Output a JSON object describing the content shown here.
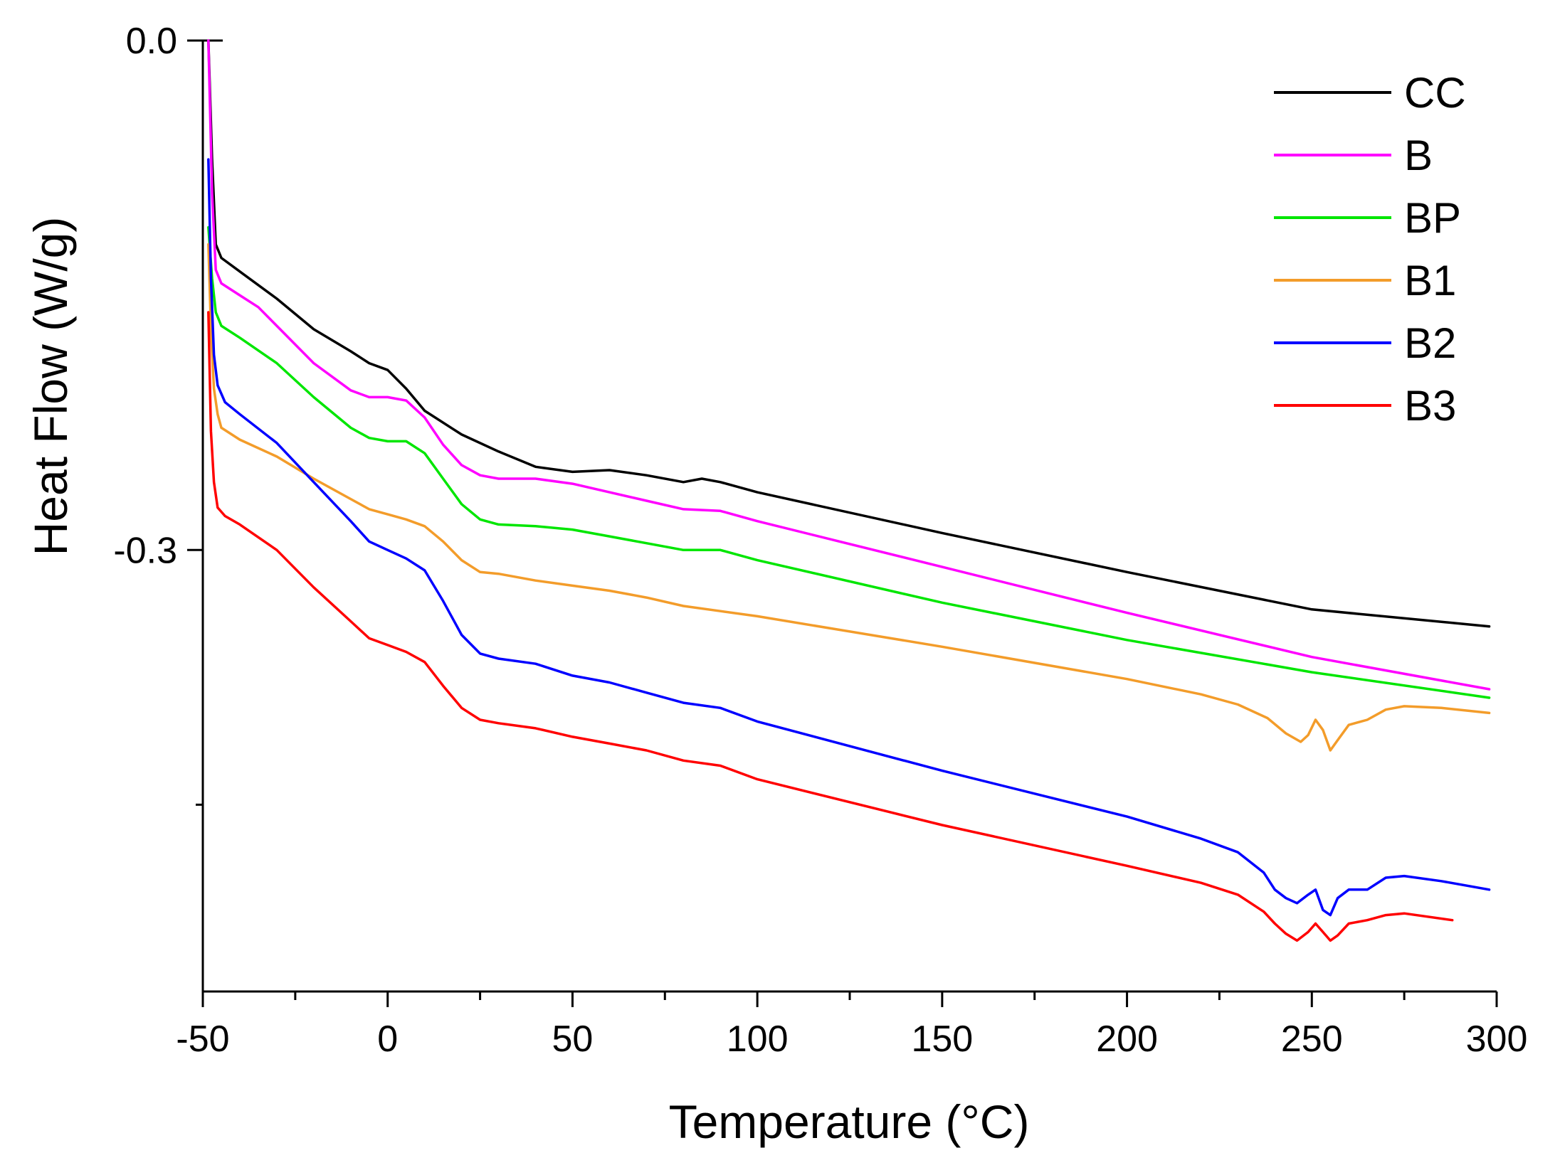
{
  "chart_data": {
    "type": "line",
    "title": "",
    "xlabel": "Temperature (°C)",
    "ylabel": "Heat Flow (W/g)",
    "xlim": [
      -50,
      300
    ],
    "ylim": [
      -0.56,
      0.0
    ],
    "x_ticks": [
      -50,
      0,
      50,
      100,
      150,
      200,
      250,
      300
    ],
    "x_tick_labels": [
      "-50",
      "0",
      "50",
      "100",
      "150",
      "200",
      "250",
      "300"
    ],
    "x_minor_ticks": [
      -25,
      25,
      75,
      125,
      175,
      225,
      275
    ],
    "y_ticks": [
      0.0,
      -0.3,
      -0.45
    ],
    "y_tick_labels": [
      "0.0",
      "-0.3",
      ""
    ],
    "grid": false,
    "legend_position": "top-right",
    "series": [
      {
        "name": "CC",
        "color": "#000000",
        "points": [
          [
            -48.5,
            0.0
          ],
          [
            -47.5,
            -0.07
          ],
          [
            -46.5,
            -0.12
          ],
          [
            -45,
            -0.128
          ],
          [
            -40,
            -0.136
          ],
          [
            -30,
            -0.152
          ],
          [
            -20,
            -0.17
          ],
          [
            -10,
            -0.183
          ],
          [
            -5,
            -0.19
          ],
          [
            0,
            -0.194
          ],
          [
            5,
            -0.205
          ],
          [
            10,
            -0.218
          ],
          [
            20,
            -0.232
          ],
          [
            30,
            -0.242
          ],
          [
            40,
            -0.251
          ],
          [
            50,
            -0.254
          ],
          [
            60,
            -0.253
          ],
          [
            70,
            -0.256
          ],
          [
            80,
            -0.26
          ],
          [
            85,
            -0.258
          ],
          [
            90,
            -0.26
          ],
          [
            100,
            -0.266
          ],
          [
            150,
            -0.29
          ],
          [
            200,
            -0.313
          ],
          [
            250,
            -0.335
          ],
          [
            298,
            -0.345
          ]
        ]
      },
      {
        "name": "B",
        "color": "#ff00ff",
        "points": [
          [
            -48.5,
            0.0
          ],
          [
            -47.5,
            -0.09
          ],
          [
            -46.5,
            -0.135
          ],
          [
            -45,
            -0.143
          ],
          [
            -40,
            -0.15
          ],
          [
            -35,
            -0.157
          ],
          [
            -30,
            -0.168
          ],
          [
            -20,
            -0.19
          ],
          [
            -10,
            -0.206
          ],
          [
            -5,
            -0.21
          ],
          [
            0,
            -0.21
          ],
          [
            5,
            -0.212
          ],
          [
            10,
            -0.222
          ],
          [
            15,
            -0.238
          ],
          [
            20,
            -0.25
          ],
          [
            25,
            -0.256
          ],
          [
            30,
            -0.258
          ],
          [
            40,
            -0.258
          ],
          [
            50,
            -0.261
          ],
          [
            60,
            -0.266
          ],
          [
            70,
            -0.271
          ],
          [
            80,
            -0.276
          ],
          [
            90,
            -0.277
          ],
          [
            100,
            -0.283
          ],
          [
            150,
            -0.31
          ],
          [
            200,
            -0.337
          ],
          [
            250,
            -0.363
          ],
          [
            298,
            -0.382
          ]
        ]
      },
      {
        "name": "BP",
        "color": "#00e600",
        "points": [
          [
            -48.5,
            -0.11
          ],
          [
            -47.5,
            -0.14
          ],
          [
            -46.5,
            -0.16
          ],
          [
            -45,
            -0.168
          ],
          [
            -40,
            -0.175
          ],
          [
            -30,
            -0.19
          ],
          [
            -20,
            -0.21
          ],
          [
            -10,
            -0.228
          ],
          [
            -5,
            -0.234
          ],
          [
            0,
            -0.236
          ],
          [
            5,
            -0.236
          ],
          [
            10,
            -0.243
          ],
          [
            15,
            -0.258
          ],
          [
            20,
            -0.273
          ],
          [
            25,
            -0.282
          ],
          [
            30,
            -0.285
          ],
          [
            40,
            -0.286
          ],
          [
            50,
            -0.288
          ],
          [
            60,
            -0.292
          ],
          [
            70,
            -0.296
          ],
          [
            80,
            -0.3
          ],
          [
            90,
            -0.3
          ],
          [
            100,
            -0.306
          ],
          [
            150,
            -0.331
          ],
          [
            200,
            -0.353
          ],
          [
            250,
            -0.372
          ],
          [
            298,
            -0.387
          ]
        ]
      },
      {
        "name": "B1",
        "color": "#f39c2a",
        "points": [
          [
            -48.5,
            -0.12
          ],
          [
            -47.8,
            -0.17
          ],
          [
            -47,
            -0.205
          ],
          [
            -46,
            -0.22
          ],
          [
            -45,
            -0.228
          ],
          [
            -40,
            -0.235
          ],
          [
            -30,
            -0.245
          ],
          [
            -20,
            -0.258
          ],
          [
            -10,
            -0.27
          ],
          [
            -5,
            -0.276
          ],
          [
            0,
            -0.279
          ],
          [
            5,
            -0.282
          ],
          [
            10,
            -0.286
          ],
          [
            15,
            -0.295
          ],
          [
            20,
            -0.306
          ],
          [
            25,
            -0.313
          ],
          [
            30,
            -0.314
          ],
          [
            40,
            -0.318
          ],
          [
            50,
            -0.321
          ],
          [
            60,
            -0.324
          ],
          [
            70,
            -0.328
          ],
          [
            80,
            -0.333
          ],
          [
            90,
            -0.336
          ],
          [
            100,
            -0.339
          ],
          [
            150,
            -0.357
          ],
          [
            200,
            -0.376
          ],
          [
            220,
            -0.385
          ],
          [
            230,
            -0.391
          ],
          [
            238,
            -0.399
          ],
          [
            243,
            -0.408
          ],
          [
            247,
            -0.413
          ],
          [
            249,
            -0.409
          ],
          [
            251,
            -0.4
          ],
          [
            253,
            -0.406
          ],
          [
            255,
            -0.418
          ],
          [
            257,
            -0.412
          ],
          [
            260,
            -0.403
          ],
          [
            265,
            -0.4
          ],
          [
            270,
            -0.394
          ],
          [
            275,
            -0.392
          ],
          [
            285,
            -0.393
          ],
          [
            298,
            -0.396
          ]
        ]
      },
      {
        "name": "B2",
        "color": "#0000ff",
        "points": [
          [
            -48.5,
            -0.07
          ],
          [
            -47.8,
            -0.14
          ],
          [
            -47,
            -0.185
          ],
          [
            -46,
            -0.203
          ],
          [
            -44,
            -0.213
          ],
          [
            -40,
            -0.22
          ],
          [
            -30,
            -0.237
          ],
          [
            -20,
            -0.26
          ],
          [
            -10,
            -0.283
          ],
          [
            -5,
            -0.295
          ],
          [
            0,
            -0.3
          ],
          [
            5,
            -0.305
          ],
          [
            10,
            -0.312
          ],
          [
            15,
            -0.33
          ],
          [
            20,
            -0.35
          ],
          [
            25,
            -0.361
          ],
          [
            30,
            -0.364
          ],
          [
            40,
            -0.367
          ],
          [
            50,
            -0.374
          ],
          [
            60,
            -0.378
          ],
          [
            70,
            -0.384
          ],
          [
            80,
            -0.39
          ],
          [
            90,
            -0.393
          ],
          [
            100,
            -0.401
          ],
          [
            150,
            -0.43
          ],
          [
            200,
            -0.457
          ],
          [
            220,
            -0.47
          ],
          [
            230,
            -0.478
          ],
          [
            237,
            -0.49
          ],
          [
            240,
            -0.5
          ],
          [
            243,
            -0.505
          ],
          [
            246,
            -0.508
          ],
          [
            249,
            -0.503
          ],
          [
            251,
            -0.5
          ],
          [
            253,
            -0.512
          ],
          [
            255,
            -0.515
          ],
          [
            257,
            -0.505
          ],
          [
            260,
            -0.5
          ],
          [
            265,
            -0.5
          ],
          [
            270,
            -0.493
          ],
          [
            275,
            -0.492
          ],
          [
            285,
            -0.495
          ],
          [
            298,
            -0.5
          ]
        ]
      },
      {
        "name": "B3",
        "color": "#ff0000",
        "points": [
          [
            -48.5,
            -0.16
          ],
          [
            -47.8,
            -0.23
          ],
          [
            -47,
            -0.26
          ],
          [
            -46,
            -0.275
          ],
          [
            -44,
            -0.28
          ],
          [
            -40,
            -0.285
          ],
          [
            -30,
            -0.3
          ],
          [
            -20,
            -0.322
          ],
          [
            -10,
            -0.342
          ],
          [
            -5,
            -0.352
          ],
          [
            0,
            -0.356
          ],
          [
            5,
            -0.36
          ],
          [
            10,
            -0.366
          ],
          [
            15,
            -0.38
          ],
          [
            20,
            -0.393
          ],
          [
            25,
            -0.4
          ],
          [
            30,
            -0.402
          ],
          [
            40,
            -0.405
          ],
          [
            50,
            -0.41
          ],
          [
            60,
            -0.414
          ],
          [
            70,
            -0.418
          ],
          [
            80,
            -0.424
          ],
          [
            90,
            -0.427
          ],
          [
            100,
            -0.435
          ],
          [
            150,
            -0.462
          ],
          [
            200,
            -0.486
          ],
          [
            220,
            -0.496
          ],
          [
            230,
            -0.503
          ],
          [
            237,
            -0.513
          ],
          [
            240,
            -0.52
          ],
          [
            243,
            -0.526
          ],
          [
            246,
            -0.53
          ],
          [
            249,
            -0.525
          ],
          [
            251,
            -0.52
          ],
          [
            253,
            -0.525
          ],
          [
            255,
            -0.53
          ],
          [
            257,
            -0.527
          ],
          [
            260,
            -0.52
          ],
          [
            265,
            -0.518
          ],
          [
            270,
            -0.515
          ],
          [
            275,
            -0.514
          ],
          [
            288,
            -0.518
          ]
        ]
      }
    ]
  }
}
